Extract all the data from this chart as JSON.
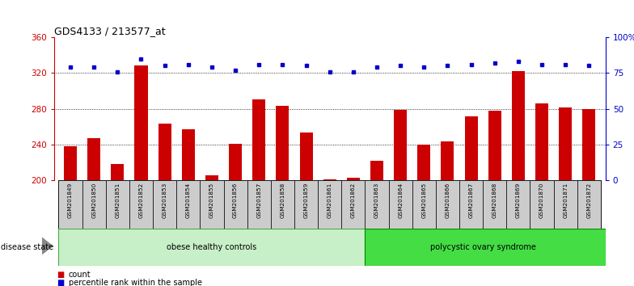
{
  "title": "GDS4133 / 213577_at",
  "samples": [
    "GSM201849",
    "GSM201850",
    "GSM201851",
    "GSM201852",
    "GSM201853",
    "GSM201854",
    "GSM201855",
    "GSM201856",
    "GSM201857",
    "GSM201858",
    "GSM201859",
    "GSM201861",
    "GSM201862",
    "GSM201863",
    "GSM201864",
    "GSM201865",
    "GSM201866",
    "GSM201867",
    "GSM201868",
    "GSM201869",
    "GSM201870",
    "GSM201871",
    "GSM201872"
  ],
  "counts": [
    238,
    247,
    218,
    328,
    263,
    257,
    205,
    241,
    290,
    283,
    253,
    201,
    203,
    222,
    279,
    240,
    243,
    271,
    278,
    322,
    286,
    281,
    280
  ],
  "percentiles": [
    79,
    79,
    76,
    85,
    80,
    81,
    79,
    77,
    81,
    81,
    80,
    76,
    76,
    79,
    80,
    79,
    80,
    81,
    82,
    83,
    81,
    81,
    80
  ],
  "count_baseline": 200,
  "ylim_left": [
    200,
    360
  ],
  "ylim_right": [
    0,
    100
  ],
  "yticks_left": [
    200,
    240,
    280,
    320,
    360
  ],
  "yticks_right": [
    0,
    25,
    50,
    75,
    100
  ],
  "yticklabels_right": [
    "0",
    "25",
    "50",
    "75",
    "100%"
  ],
  "bar_color": "#cc0000",
  "dot_color": "#0000cc",
  "bar_width": 0.55,
  "group1_label": "obese healthy controls",
  "group2_label": "polycystic ovary syndrome",
  "group1_count": 13,
  "group2_count": 10,
  "group1_color": "#c8f0c8",
  "group2_color": "#44dd44",
  "disease_state_label": "disease state",
  "legend_count_label": "count",
  "legend_percentile_label": "percentile rank within the sample",
  "bg_color": "#ffffff",
  "plot_bg_color": "#ffffff",
  "tick_label_bg": "#cccccc",
  "grid_color": "#000000",
  "title_color": "#000000",
  "left_axis_color": "#cc0000",
  "right_axis_color": "#0000cc"
}
